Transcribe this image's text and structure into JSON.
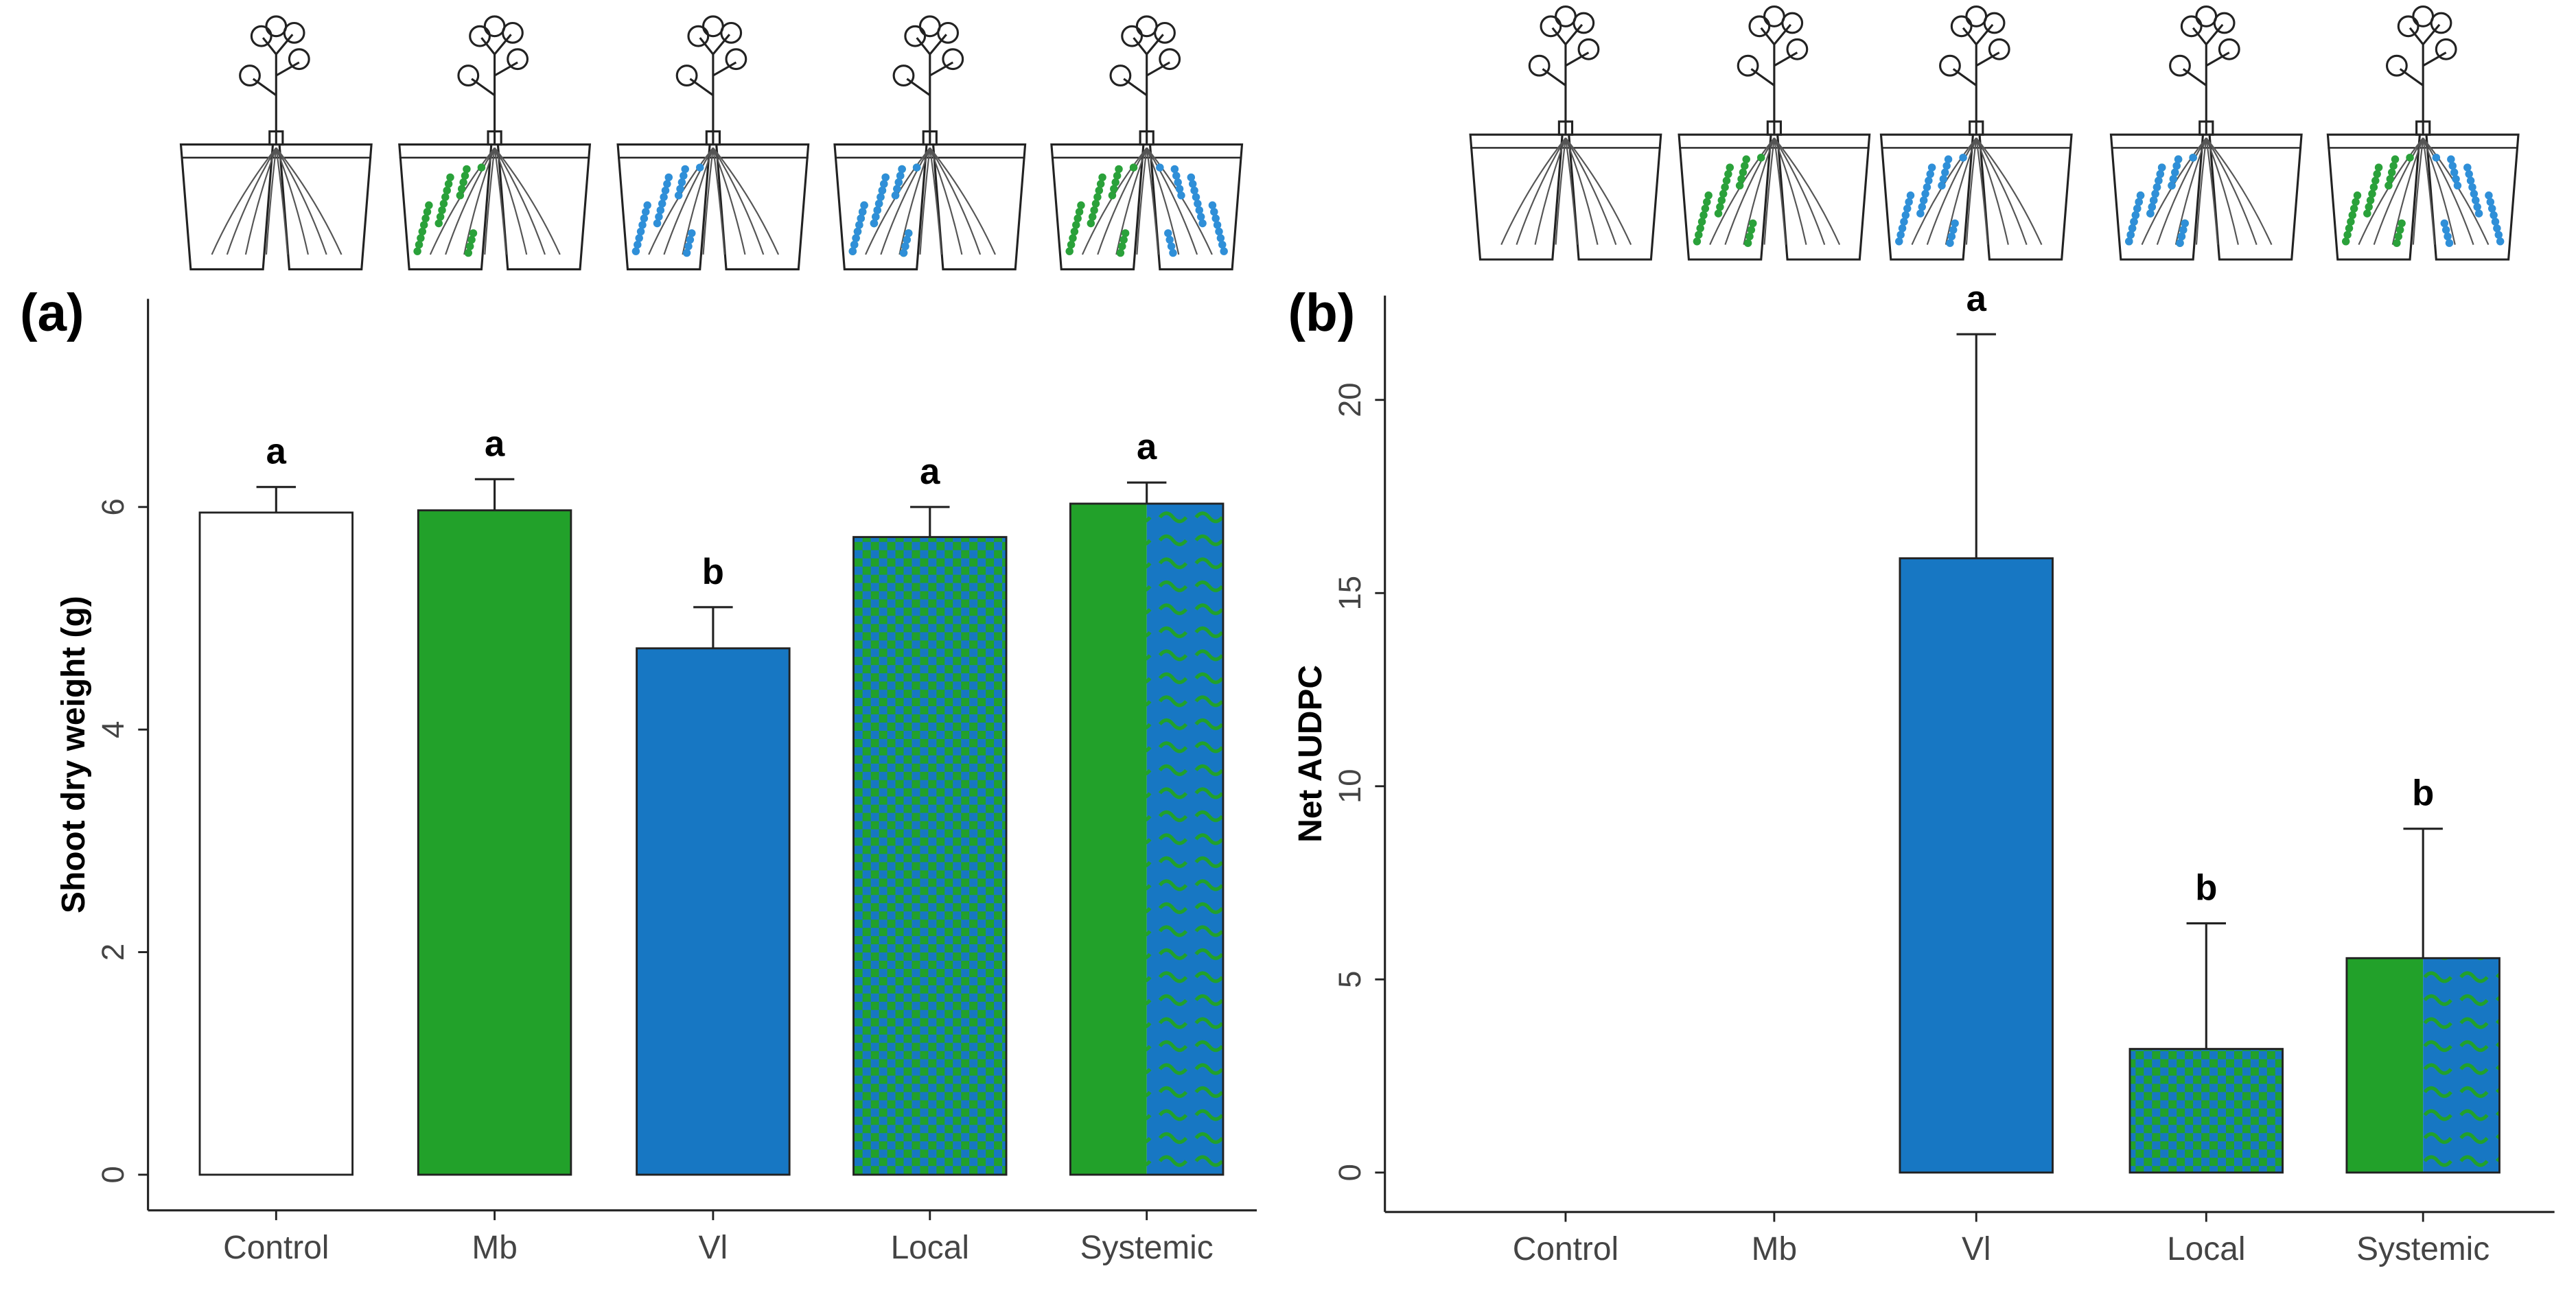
{
  "chart_data": [
    {
      "type": "bar",
      "panel_label": "(a)",
      "ylabel": "Shoot dry weight (g)",
      "categories": [
        "Control",
        "Mb",
        "Vl",
        "Local",
        "Systemic"
      ],
      "values": [
        5.95,
        5.97,
        4.73,
        5.73,
        6.03
      ],
      "errors": [
        0.23,
        0.28,
        0.37,
        0.27,
        0.19
      ],
      "letters": [
        "a",
        "a",
        "b",
        "a",
        "a"
      ],
      "colors": [
        "#ffffff",
        "#22a12a",
        "#1777c3",
        "#1777c3",
        "#1777c3"
      ],
      "patterns": [
        null,
        null,
        null,
        "checker",
        "split-wave"
      ],
      "ylim": [
        -0.32,
        7.87
      ],
      "yticks": [
        0,
        2,
        4,
        6
      ]
    },
    {
      "type": "bar",
      "panel_label": "(b)",
      "ylabel": "Net AUDPC",
      "categories": [
        "Control",
        "Mb",
        "Vl",
        "Local",
        "Systemic"
      ],
      "values": [
        0,
        0,
        15.9,
        3.2,
        5.55
      ],
      "errors": [
        null,
        null,
        5.8,
        3.25,
        3.35
      ],
      "letters": [
        null,
        null,
        "a",
        "b",
        "b"
      ],
      "colors": [
        "#ffffff",
        "#ffffff",
        "#1777c3",
        "#1777c3",
        "#1777c3"
      ],
      "patterns": [
        null,
        null,
        null,
        "checker",
        "split-wave"
      ],
      "ylim": [
        -1.02,
        22.7
      ],
      "yticks": [
        0,
        5,
        10,
        15,
        20
      ]
    }
  ]
}
